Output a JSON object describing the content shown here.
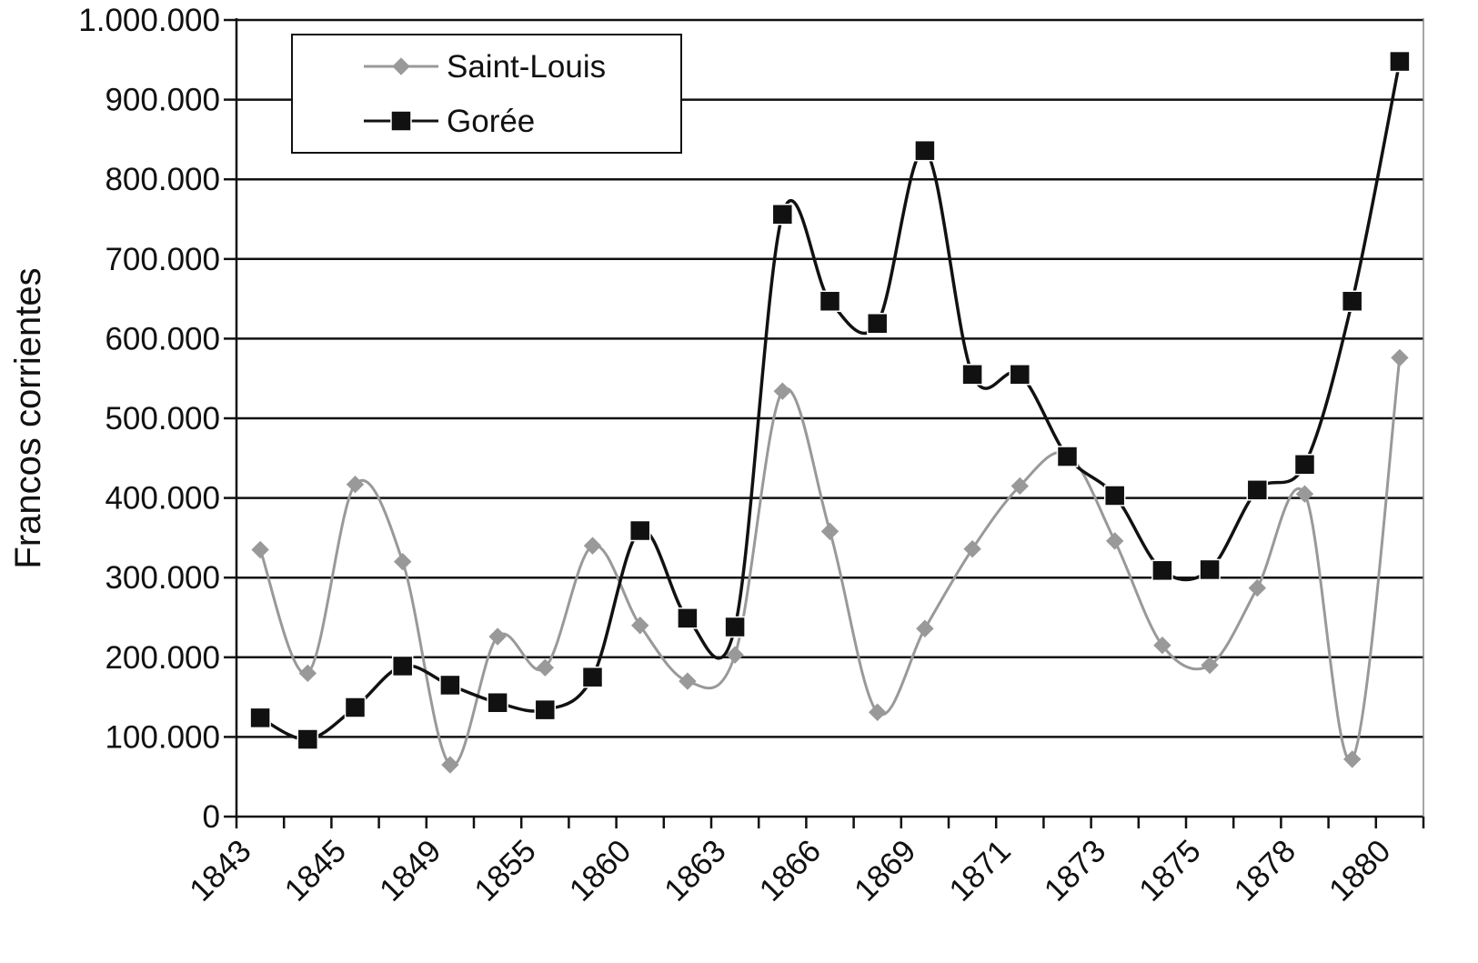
{
  "chart_data": {
    "type": "line",
    "title": "",
    "xlabel": "",
    "ylabel": "Francos corrientes",
    "ylim": [
      0,
      1000000
    ],
    "yticks": [
      0,
      100000,
      200000,
      300000,
      400000,
      500000,
      600000,
      700000,
      800000,
      900000,
      1000000
    ],
    "ytick_labels": [
      "0",
      "100.000",
      "200.000",
      "300.000",
      "400.000",
      "500.000",
      "600.000",
      "700.000",
      "800.000",
      "900.000",
      "1.000.000"
    ],
    "x_tick_labels": [
      "1843",
      "1845",
      "1849",
      "1855",
      "1860",
      "1863",
      "1866",
      "1869",
      "1871",
      "1873",
      "1875",
      "1878",
      "1880"
    ],
    "grid": true,
    "legend_position": "top-left",
    "smooth": true,
    "series": [
      {
        "name": "Saint-Louis",
        "color": "#999999",
        "marker": "diamond",
        "values": [
          335000,
          180000,
          417000,
          320000,
          65000,
          226000,
          187000,
          340000,
          240000,
          170000,
          203000,
          534000,
          358000,
          131000,
          236000,
          336000,
          415000,
          455000,
          346000,
          215000,
          190000,
          287000,
          405000,
          72000,
          576000
        ]
      },
      {
        "name": "Gorée",
        "color": "#111111",
        "marker": "square",
        "values": [
          124000,
          97000,
          137000,
          189000,
          165000,
          143000,
          134000,
          175000,
          359000,
          249000,
          238000,
          756000,
          647000,
          619000,
          836000,
          555000,
          555000,
          452000,
          403000,
          309000,
          310000,
          410000,
          442000,
          647000,
          948000
        ]
      }
    ]
  }
}
